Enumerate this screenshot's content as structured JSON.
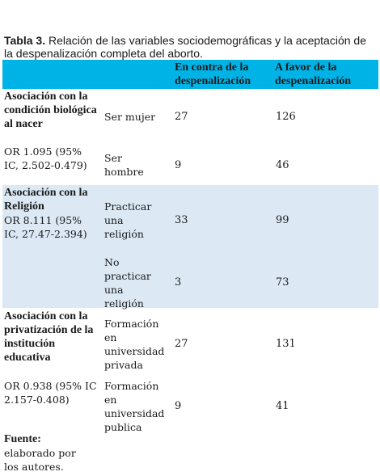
{
  "caption": {
    "label": "Tabla 3.",
    "text": " Relación de las variables sociodemográficas y la aceptación de la despenalización completa del aborto."
  },
  "header": {
    "col_contra": "En contra de la despenalización",
    "col_favor": "A favor de la despenalización"
  },
  "groups": [
    {
      "title": "Asociación con la condición biológica al nacer",
      "stat": "OR 1.095 (95% IC, 2.502-0.479)",
      "rows": [
        {
          "label": "Ser mujer",
          "contra": "27",
          "favor": "126"
        },
        {
          "label": "Ser hombre",
          "contra": "9",
          "favor": "46"
        }
      ]
    },
    {
      "title": "Asociación con la Religión",
      "stat": "OR 8.111 (95% IC, 27.47-2.394)",
      "rows": [
        {
          "label": "Practicar una religión",
          "contra": "33",
          "favor": "99"
        },
        {
          "label": "No practicar una religión",
          "contra": "3",
          "favor": "73"
        }
      ]
    },
    {
      "title": "Asociación con la privatización de la institución educativa",
      "stat": "OR 0.938 (95% IC 2.157-0.408)",
      "rows": [
        {
          "label": "Formación en universidad privada",
          "contra": "27",
          "favor": "131"
        },
        {
          "label": "Formación en universidad publica",
          "contra": "9",
          "favor": "41"
        }
      ]
    }
  ],
  "footer": {
    "label": "Fuente:",
    "text": "elaborado por los autores."
  },
  "colors": {
    "header_bg": "#00b3e6",
    "band_bg": "#dce9f5"
  }
}
